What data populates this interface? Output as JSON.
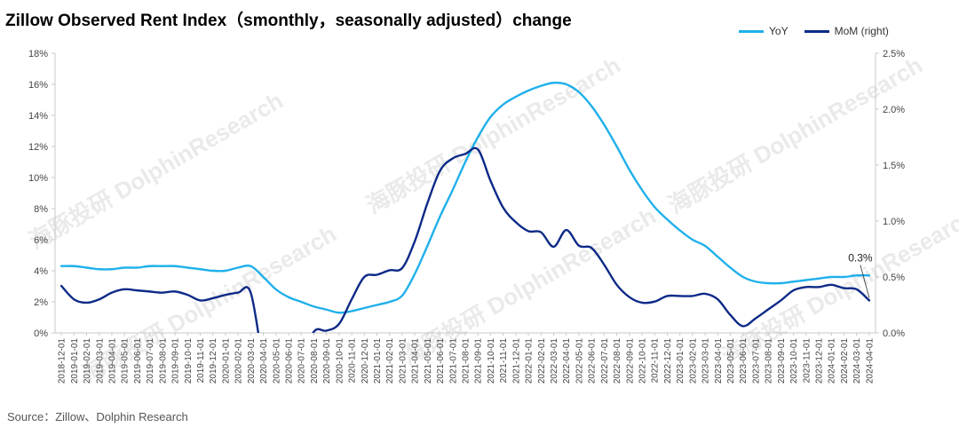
{
  "title": "Zillow Observed Rent Index（smonthly，seasonally adjusted）change",
  "source": "Source：Zillow、Dolphin Research",
  "watermark": "海豚投研 DolphinResearch",
  "colors": {
    "yoy": "#1fb0ea",
    "mom": "#0d2a87",
    "axis": "#c8c8c8"
  },
  "chart_data": {
    "type": "line",
    "title": "Zillow Observed Rent Index（smonthly，seasonally adjusted）change",
    "legend_position": "top-right",
    "x_labels": [
      "2018-12-01",
      "2019-01-01",
      "2019-02-01",
      "2019-03-01",
      "2019-04-01",
      "2019-05-01",
      "2019-06-01",
      "2019-07-01",
      "2019-08-01",
      "2019-09-01",
      "2019-10-01",
      "2019-11-01",
      "2019-12-01",
      "2020-01-01",
      "2020-02-01",
      "2020-03-01",
      "2020-04-01",
      "2020-05-01",
      "2020-06-01",
      "2020-07-01",
      "2020-08-01",
      "2020-09-01",
      "2020-10-01",
      "2020-11-01",
      "2020-12-01",
      "2021-01-01",
      "2021-02-01",
      "2021-03-01",
      "2021-04-01",
      "2021-05-01",
      "2021-06-01",
      "2021-07-01",
      "2021-08-01",
      "2021-09-01",
      "2021-10-01",
      "2021-11-01",
      "2021-12-01",
      "2022-01-01",
      "2022-02-01",
      "2022-03-01",
      "2022-04-01",
      "2022-05-01",
      "2022-06-01",
      "2022-07-01",
      "2022-08-01",
      "2022-09-01",
      "2022-10-01",
      "2022-11-01",
      "2022-12-01",
      "2023-01-01",
      "2023-02-01",
      "2023-03-01",
      "2023-04-01",
      "2023-05-01",
      "2023-06-01",
      "2023-07-01",
      "2023-08-01",
      "2023-09-01",
      "2023-10-01",
      "2023-11-01",
      "2023-12-01",
      "2024-01-01",
      "2024-02-01",
      "2024-03-01",
      "2024-04-01"
    ],
    "left_axis": {
      "min": 0,
      "max": 18,
      "step": 2,
      "suffix": "%",
      "decimals": 0
    },
    "right_axis": {
      "min": 0,
      "max": 2.5,
      "step": 0.5,
      "suffix": "%",
      "decimals": 1
    },
    "series": [
      {
        "name": "YoY",
        "axis": "left",
        "values": [
          4.3,
          4.3,
          4.2,
          4.1,
          4.1,
          4.2,
          4.2,
          4.3,
          4.3,
          4.3,
          4.2,
          4.1,
          4.0,
          4.0,
          4.2,
          4.3,
          3.6,
          2.8,
          2.3,
          2.0,
          1.7,
          1.5,
          1.3,
          1.4,
          1.6,
          1.8,
          2.0,
          2.4,
          3.8,
          5.6,
          7.5,
          9.2,
          11.0,
          12.6,
          13.9,
          14.7,
          15.2,
          15.6,
          15.9,
          16.1,
          16.0,
          15.5,
          14.6,
          13.4,
          12.0,
          10.5,
          9.2,
          8.1,
          7.3,
          6.6,
          6.0,
          5.6,
          4.9,
          4.2,
          3.6,
          3.3,
          3.2,
          3.2,
          3.3,
          3.4,
          3.5,
          3.6,
          3.6,
          3.7,
          3.7
        ]
      },
      {
        "name": "MoM (right)",
        "axis": "right",
        "values": [
          0.42,
          0.3,
          0.27,
          0.3,
          0.36,
          0.39,
          0.38,
          0.37,
          0.36,
          0.37,
          0.34,
          0.29,
          0.31,
          0.34,
          0.36,
          0.36,
          -0.3,
          null,
          null,
          -0.3,
          0.01,
          0.02,
          0.08,
          0.3,
          0.5,
          0.52,
          0.56,
          0.58,
          0.82,
          1.16,
          1.45,
          1.56,
          1.6,
          1.64,
          1.36,
          1.12,
          0.99,
          0.91,
          0.9,
          0.77,
          0.92,
          0.78,
          0.76,
          0.61,
          0.43,
          0.32,
          0.27,
          0.28,
          0.33,
          0.33,
          0.33,
          0.35,
          0.3,
          0.16,
          0.06,
          0.13,
          0.21,
          0.29,
          0.38,
          0.41,
          0.41,
          0.43,
          0.4,
          0.39,
          0.29
        ]
      }
    ],
    "annotations": [
      {
        "series": "MoM (right)",
        "index": 64,
        "text": "0.3%"
      }
    ]
  }
}
